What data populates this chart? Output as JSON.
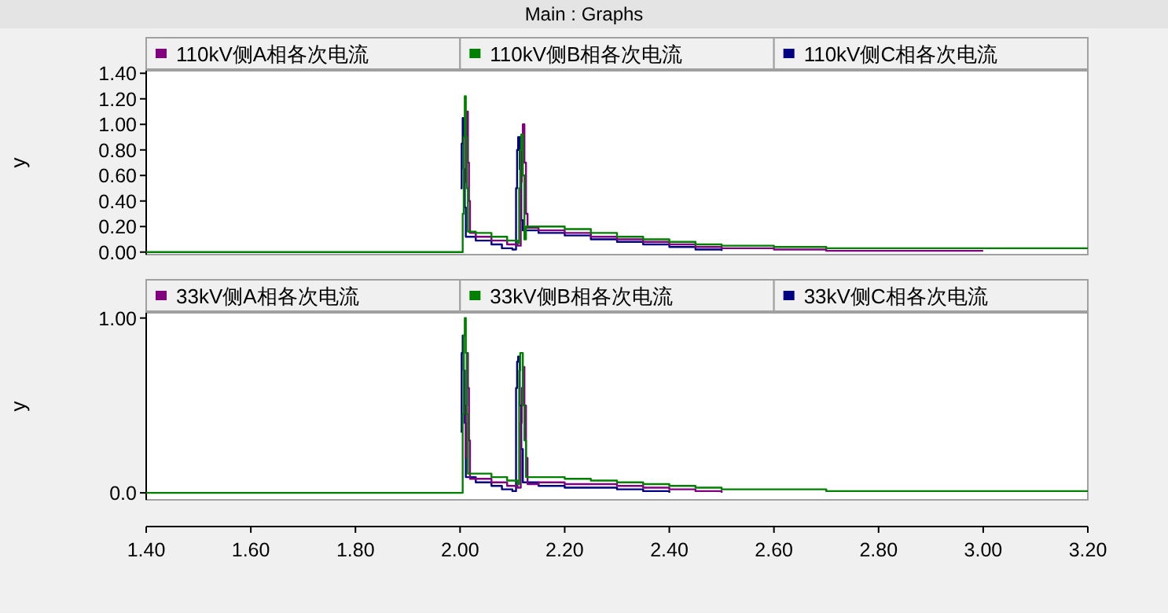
{
  "chart_data": [
    {
      "type": "step",
      "title": "Main : Graphs",
      "ylabel": "y",
      "legend": "top",
      "tick_labels": "y",
      "xlim": [
        1.4,
        3.2
      ],
      "ylim": [
        -0.02,
        1.42
      ],
      "yticks": [
        {
          "value": 0,
          "label": "0.00"
        },
        {
          "value": 0.2,
          "label": "0.20"
        },
        {
          "value": 0.4,
          "label": "0.40"
        },
        {
          "value": 0.6,
          "label": "0.60"
        },
        {
          "value": 0.8,
          "label": "0.80"
        },
        {
          "value": 1,
          "label": "1.00"
        },
        {
          "value": 1.2,
          "label": "1.20"
        },
        {
          "value": 1.4,
          "label": "1.40"
        }
      ],
      "x": [
        1.4,
        2.005,
        2.007,
        2.009,
        2.011,
        2.013,
        2.015,
        2.03,
        2.06,
        2.09,
        2.11,
        2.113,
        2.115,
        2.117,
        2.12,
        2.123,
        2.126,
        2.15,
        2.2,
        2.25,
        2.3,
        2.35,
        2.4,
        2.45,
        2.5,
        2.6,
        2.7,
        2.8,
        2.9,
        3.0,
        3.2
      ],
      "series": [
        {
          "name": "110kV侧A相各次电流",
          "color": "#800080",
          "x": [
            2.009,
            2.011,
            2.013,
            2.015,
            2.017,
            2.019,
            2.03,
            2.06,
            2.09,
            2.11,
            2.116,
            2.118,
            2.12,
            2.123,
            2.126,
            2.129,
            2.15,
            2.2,
            2.25,
            2.3,
            2.35,
            2.4,
            2.45,
            2.5,
            2.6,
            2.7,
            2.8,
            2.9,
            3.0
          ],
          "values": [
            0.55,
            0.9,
            1.1,
            0.7,
            0.4,
            0.15,
            0.12,
            0.09,
            0.06,
            0.05,
            0.55,
            0.85,
            1.0,
            0.7,
            0.3,
            0.19,
            0.17,
            0.15,
            0.12,
            0.1,
            0.08,
            0.06,
            0.04,
            0.03,
            0.02,
            0.01,
            0.01,
            0.01,
            0.01
          ]
        },
        {
          "name": "110kV侧B相各次电流",
          "color": "#008000",
          "values": [
            0,
            0.3,
            0.9,
            1.22,
            0.9,
            0.5,
            0.16,
            0.15,
            0.12,
            0.09,
            0.07,
            0.5,
            0.8,
            0.92,
            0.6,
            0.1,
            0.2,
            0.2,
            0.18,
            0.15,
            0.12,
            0.1,
            0.08,
            0.06,
            0.05,
            0.04,
            0.03,
            0.03,
            0.03,
            0.03,
            0.03
          ]
        },
        {
          "name": "110kV侧C相各次电流",
          "color": "#000080",
          "x": [
            2.001,
            2.003,
            2.005,
            2.007,
            2.009,
            2.011,
            2.03,
            2.06,
            2.08,
            2.1,
            2.107,
            2.109,
            2.111,
            2.114,
            2.117,
            2.12,
            2.15,
            2.2,
            2.25,
            2.3,
            2.35,
            2.4,
            2.45,
            2.5
          ],
          "values": [
            0.5,
            0.85,
            1.05,
            0.65,
            0.35,
            0.12,
            0.09,
            0.06,
            0.03,
            0.02,
            0.5,
            0.8,
            0.9,
            0.65,
            0.25,
            0.17,
            0.15,
            0.13,
            0.1,
            0.08,
            0.06,
            0.04,
            0.02,
            0.01
          ]
        }
      ]
    },
    {
      "type": "step",
      "ylabel": "y",
      "legend": "top",
      "xlim": [
        1.4,
        3.2
      ],
      "ylim": [
        -0.04,
        1.03
      ],
      "xticks": [
        {
          "value": 1.4,
          "label": "1.40"
        },
        {
          "value": 1.6,
          "label": "1.60"
        },
        {
          "value": 1.8,
          "label": "1.80"
        },
        {
          "value": 2.0,
          "label": "2.00"
        },
        {
          "value": 2.2,
          "label": "2.20"
        },
        {
          "value": 2.4,
          "label": "2.40"
        },
        {
          "value": 2.6,
          "label": "2.60"
        },
        {
          "value": 2.8,
          "label": "2.80"
        },
        {
          "value": 3.0,
          "label": "3.00"
        },
        {
          "value": 3.2,
          "label": "3.20"
        }
      ],
      "yticks": [
        {
          "value": 0,
          "label": "0.0"
        },
        {
          "value": 1,
          "label": "1.00"
        }
      ],
      "x": [
        1.4,
        2.005,
        2.007,
        2.009,
        2.011,
        2.013,
        2.015,
        2.03,
        2.06,
        2.09,
        2.11,
        2.113,
        2.115,
        2.117,
        2.12,
        2.123,
        2.126,
        2.15,
        2.2,
        2.25,
        2.3,
        2.35,
        2.4,
        2.45,
        2.5,
        2.6,
        2.7,
        2.8,
        2.9,
        3.0,
        3.2
      ],
      "series": [
        {
          "name": "33kV侧A相各次电流",
          "color": "#800080",
          "x": [
            2.009,
            2.011,
            2.013,
            2.015,
            2.017,
            2.019,
            2.03,
            2.06,
            2.09,
            2.11,
            2.116,
            2.118,
            2.12,
            2.123,
            2.126,
            2.129,
            2.15,
            2.2,
            2.25,
            2.3,
            2.35,
            2.4,
            2.45,
            2.5
          ],
          "values": [
            0.2,
            0.5,
            0.8,
            0.6,
            0.3,
            0.08,
            0.08,
            0.06,
            0.04,
            0.03,
            0.4,
            0.6,
            0.72,
            0.5,
            0.2,
            0.05,
            0.06,
            0.05,
            0.05,
            0.04,
            0.03,
            0.02,
            0.01,
            0.0
          ]
        },
        {
          "name": "33kV侧B相各次电流",
          "color": "#008000",
          "values": [
            0,
            0.45,
            0.9,
            1.0,
            0.8,
            0.45,
            0.11,
            0.11,
            0.09,
            0.07,
            0.05,
            0.7,
            0.8,
            0.8,
            0.5,
            0.3,
            0.09,
            0.09,
            0.08,
            0.07,
            0.06,
            0.05,
            0.04,
            0.03,
            0.02,
            0.02,
            0.01,
            0.01,
            0.01,
            0.01,
            0.01
          ]
        },
        {
          "name": "33kV侧C相各次电流",
          "color": "#000080",
          "x": [
            2.001,
            2.003,
            2.005,
            2.007,
            2.009,
            2.011,
            2.03,
            2.06,
            2.08,
            2.1,
            2.107,
            2.109,
            2.111,
            2.114,
            2.117,
            2.12,
            2.15,
            2.2,
            2.25,
            2.3,
            2.35,
            2.4
          ],
          "values": [
            0.35,
            0.8,
            0.9,
            0.7,
            0.4,
            0.09,
            0.06,
            0.04,
            0.02,
            0.01,
            0.6,
            0.75,
            0.78,
            0.5,
            0.25,
            0.06,
            0.04,
            0.03,
            0.03,
            0.02,
            0.01,
            0.0
          ]
        }
      ]
    }
  ]
}
